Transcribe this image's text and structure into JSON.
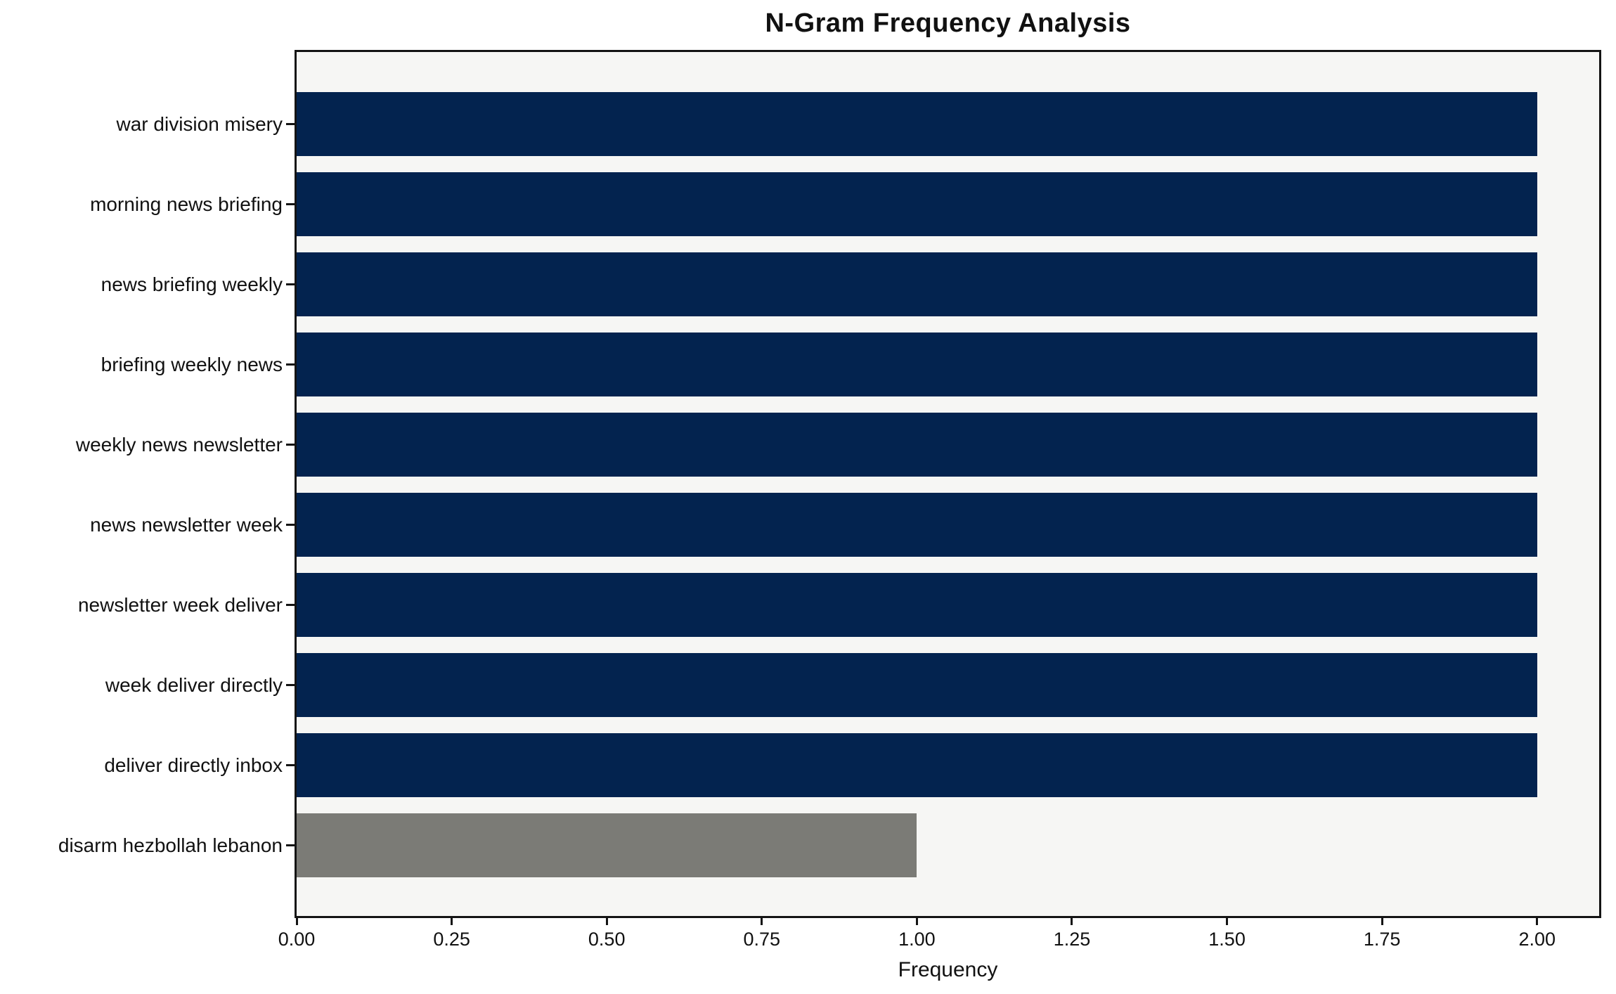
{
  "chart_data": {
    "type": "bar",
    "orientation": "horizontal",
    "title": "N-Gram Frequency Analysis",
    "xlabel": "Frequency",
    "ylabel": "",
    "categories": [
      "war division misery",
      "morning news briefing",
      "news briefing weekly",
      "briefing weekly news",
      "weekly news newsletter",
      "news newsletter week",
      "newsletter week deliver",
      "week deliver directly",
      "deliver directly inbox",
      "disarm hezbollah lebanon"
    ],
    "values": [
      2,
      2,
      2,
      2,
      2,
      2,
      2,
      2,
      2,
      1
    ],
    "bar_colors": [
      "#03234f",
      "#03234f",
      "#03234f",
      "#03234f",
      "#03234f",
      "#03234f",
      "#03234f",
      "#03234f",
      "#03234f",
      "#7b7b76"
    ],
    "xlim": [
      0,
      2.1
    ],
    "x_tick_values": [
      0,
      0.25,
      0.5,
      0.75,
      1.0,
      1.25,
      1.5,
      1.75,
      2.0
    ],
    "x_tick_labels": [
      "0.00",
      "0.25",
      "0.50",
      "0.75",
      "1.00",
      "1.25",
      "1.50",
      "1.75",
      "2.00"
    ],
    "grid": false,
    "legend": null,
    "colors": {
      "bar_primary": "#03234f",
      "bar_secondary": "#7b7b76",
      "plot_background": "#f6f6f4",
      "figure_background": "#ffffff",
      "spine": "#141414",
      "text": "#111111"
    }
  }
}
